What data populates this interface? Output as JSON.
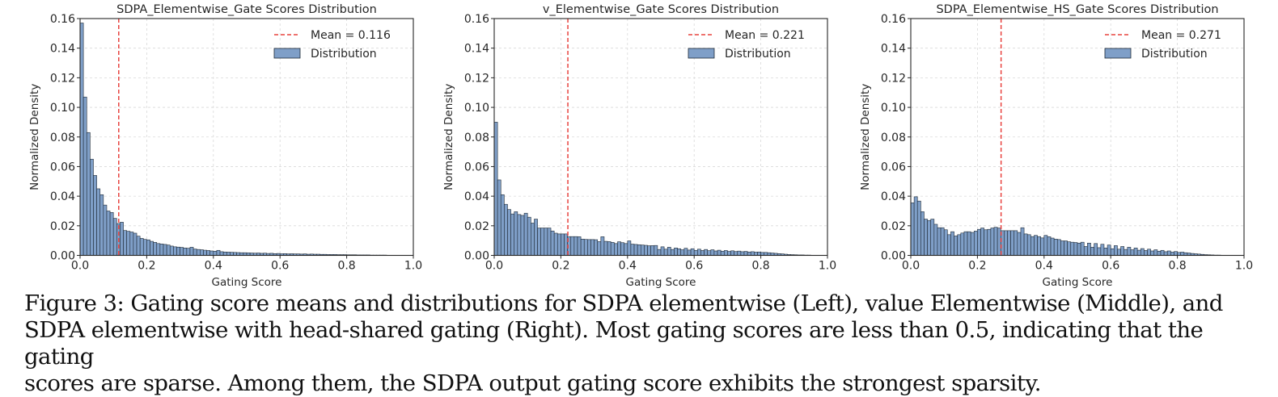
{
  "colors": {
    "bar_fill": "#7f9fc8",
    "bar_edge": "#1f2a36",
    "mean_line": "#e8433f",
    "grid": "#d9d9d9",
    "axis": "#262626"
  },
  "chart_data": [
    {
      "type": "bar",
      "subtype": "histogram",
      "title": "SDPA_Elementwise_Gate Scores Distribution",
      "xlabel": "Gating Score",
      "ylabel": "Normalized Density",
      "xlim": [
        0.0,
        1.0
      ],
      "ylim": [
        0.0,
        0.16
      ],
      "xticks": [
        "0.0",
        "0.2",
        "0.4",
        "0.6",
        "0.8",
        "1.0"
      ],
      "yticks": [
        "0.00",
        "0.02",
        "0.04",
        "0.06",
        "0.08",
        "0.10",
        "0.12",
        "0.14",
        "0.16"
      ],
      "grid": true,
      "legend_position": "top-right",
      "legend": [
        {
          "type": "line",
          "label": "Mean = 0.116"
        },
        {
          "type": "patch",
          "label": "Distribution"
        }
      ],
      "mean": 0.116,
      "bin_width": 0.01,
      "bin_start": 0.0,
      "values": [
        0.157,
        0.107,
        0.083,
        0.065,
        0.054,
        0.045,
        0.041,
        0.034,
        0.03,
        0.029,
        0.025,
        0.0215,
        0.0224,
        0.0168,
        0.0163,
        0.0158,
        0.015,
        0.013,
        0.0115,
        0.0108,
        0.0105,
        0.0095,
        0.0088,
        0.008,
        0.0077,
        0.0074,
        0.007,
        0.0063,
        0.0058,
        0.0056,
        0.0054,
        0.005,
        0.0048,
        0.0055,
        0.0043,
        0.004,
        0.0038,
        0.0035,
        0.0033,
        0.003,
        0.0028,
        0.0034,
        0.0025,
        0.0023,
        0.0022,
        0.0021,
        0.002,
        0.0019,
        0.0018,
        0.0018,
        0.0017,
        0.0016,
        0.0015,
        0.0016,
        0.0014,
        0.0015,
        0.0013,
        0.0014,
        0.0012,
        0.0013,
        0.0011,
        0.0012,
        0.001,
        0.0011,
        0.001,
        0.001,
        0.0009,
        0.001,
        0.0008,
        0.0009,
        0.0008,
        0.0008,
        0.0007,
        0.0007,
        0.0006,
        0.0006,
        0.0006,
        0.0005,
        0.0005,
        0.0005,
        0.0004,
        0.0004,
        0.0004,
        0.0003,
        0.0003,
        0.0003,
        0.0003,
        0.0002,
        0.0002,
        0.0002,
        0.0002,
        0.0002,
        0.0001,
        0.0001,
        0.0001,
        0.0001,
        0.0001,
        0.0001,
        0.0001,
        0.0001
      ]
    },
    {
      "type": "bar",
      "subtype": "histogram",
      "title": "v_Elementwise_Gate Scores Distribution",
      "xlabel": "Gating Score",
      "ylabel": "Normalized Density",
      "xlim": [
        0.0,
        1.0
      ],
      "ylim": [
        0.0,
        0.16
      ],
      "xticks": [
        "0.0",
        "0.2",
        "0.4",
        "0.6",
        "0.8",
        "1.0"
      ],
      "yticks": [
        "0.00",
        "0.02",
        "0.04",
        "0.06",
        "0.08",
        "0.10",
        "0.12",
        "0.14",
        "0.16"
      ],
      "grid": true,
      "legend_position": "top-right",
      "legend": [
        {
          "type": "line",
          "label": "Mean = 0.221"
        },
        {
          "type": "patch",
          "label": "Distribution"
        }
      ],
      "mean": 0.221,
      "bin_width": 0.01,
      "bin_start": 0.0,
      "values": [
        0.09,
        0.051,
        0.041,
        0.0345,
        0.031,
        0.028,
        0.0295,
        0.0276,
        0.027,
        0.0285,
        0.0258,
        0.0218,
        0.0245,
        0.0185,
        0.0185,
        0.0185,
        0.0185,
        0.0165,
        0.015,
        0.0145,
        0.0145,
        0.0145,
        0.0127,
        0.0127,
        0.0127,
        0.0126,
        0.011,
        0.0108,
        0.0107,
        0.0107,
        0.0106,
        0.0093,
        0.0126,
        0.0095,
        0.0093,
        0.0088,
        0.008,
        0.0092,
        0.0086,
        0.008,
        0.0098,
        0.0076,
        0.0074,
        0.0072,
        0.007,
        0.0068,
        0.0065,
        0.0066,
        0.0067,
        0.004,
        0.0058,
        0.0042,
        0.0055,
        0.004,
        0.005,
        0.0045,
        0.0038,
        0.0048,
        0.0036,
        0.0045,
        0.0034,
        0.0042,
        0.0033,
        0.004,
        0.0032,
        0.0038,
        0.003,
        0.0035,
        0.0028,
        0.0033,
        0.0027,
        0.0031,
        0.0026,
        0.0029,
        0.0025,
        0.0027,
        0.0023,
        0.0025,
        0.0022,
        0.0023,
        0.002,
        0.002,
        0.0018,
        0.0016,
        0.0014,
        0.0012,
        0.001,
        0.0008,
        0.0006,
        0.0005,
        0.0004,
        0.0003,
        0.0003,
        0.0002,
        0.0002,
        0.0001,
        0.0001,
        0.0001,
        0.0001,
        0.0001
      ]
    },
    {
      "type": "bar",
      "subtype": "histogram",
      "title": "SDPA_Elementwise_HS_Gate Scores Distribution",
      "xlabel": "Gating Score",
      "ylabel": "Normalized Density",
      "xlim": [
        0.0,
        1.0
      ],
      "ylim": [
        0.0,
        0.16
      ],
      "xticks": [
        "0.0",
        "0.2",
        "0.4",
        "0.6",
        "0.8",
        "1.0"
      ],
      "yticks": [
        "0.00",
        "0.02",
        "0.04",
        "0.06",
        "0.08",
        "0.10",
        "0.12",
        "0.14",
        "0.16"
      ],
      "grid": true,
      "legend_position": "top-right",
      "legend": [
        {
          "type": "line",
          "label": "Mean = 0.271"
        },
        {
          "type": "patch",
          "label": "Distribution"
        }
      ],
      "mean": 0.271,
      "bin_width": 0.01,
      "bin_start": 0.0,
      "values": [
        0.0355,
        0.0396,
        0.0367,
        0.0295,
        0.0245,
        0.0236,
        0.0245,
        0.021,
        0.0187,
        0.0187,
        0.0173,
        0.014,
        0.016,
        0.0131,
        0.014,
        0.0151,
        0.016,
        0.016,
        0.0155,
        0.0164,
        0.0176,
        0.0185,
        0.0173,
        0.0176,
        0.0185,
        0.019,
        0.0185,
        0.0167,
        0.0167,
        0.0167,
        0.0167,
        0.0167,
        0.0155,
        0.0187,
        0.0145,
        0.014,
        0.0127,
        0.0135,
        0.0127,
        0.0118,
        0.0135,
        0.0126,
        0.0117,
        0.011,
        0.0107,
        0.0098,
        0.0098,
        0.0092,
        0.0089,
        0.0087,
        0.0083,
        0.0089,
        0.006,
        0.0083,
        0.0055,
        0.008,
        0.0052,
        0.0075,
        0.005,
        0.007,
        0.0045,
        0.0066,
        0.0042,
        0.006,
        0.004,
        0.0055,
        0.0038,
        0.005,
        0.0035,
        0.0046,
        0.0033,
        0.0042,
        0.003,
        0.0038,
        0.0028,
        0.0034,
        0.0025,
        0.003,
        0.0022,
        0.0026,
        0.002,
        0.0022,
        0.0018,
        0.0016,
        0.0013,
        0.0011,
        0.0009,
        0.0007,
        0.0005,
        0.0004,
        0.0003,
        0.0002,
        0.0002,
        0.0001,
        0.0001,
        0.0001,
        0.0001,
        0.0001,
        0.0001,
        0.0001
      ]
    }
  ],
  "caption": {
    "lines": [
      "Figure 3: Gating score means and distributions for SDPA elementwise (Left), value Elementwise (Middle), and",
      "SDPA elementwise with head-shared gating (Right). Most gating scores are less than 0.5, indicating that the gating",
      "scores are sparse. Among them, the SDPA output gating score exhibits the strongest sparsity."
    ]
  }
}
